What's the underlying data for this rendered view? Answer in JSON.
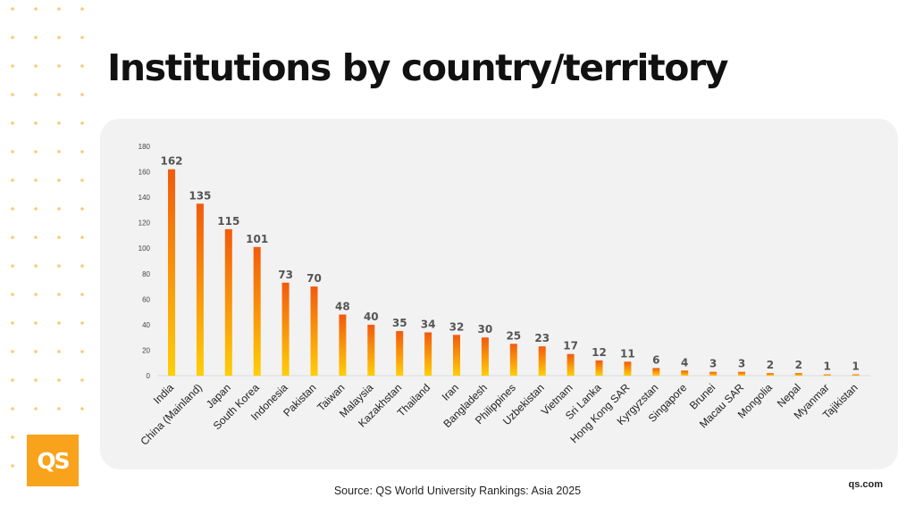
{
  "title": "Institutions by country/territory",
  "source": "Source: QS World University Rankings: Asia 2025",
  "brand": {
    "logo_text": "QS",
    "site": "qs.com",
    "logo_color": "#f9a21b",
    "dot_color": "#fbc878"
  },
  "chart_data": {
    "type": "bar",
    "categories": [
      "India",
      "China (Mainland)",
      "Japan",
      "South Korea",
      "Indonesia",
      "Pakistan",
      "Taiwan",
      "Malaysia",
      "Kazakhstan",
      "Thailand",
      "Iran",
      "Bangladesh",
      "Philippines",
      "Uzbekistan",
      "Vietnam",
      "Sri Lanka",
      "Hong Kong SAR",
      "Kyrgyzstan",
      "Singapore",
      "Brunei",
      "Macau SAR",
      "Mongolia",
      "Nepal",
      "Myanmar",
      "Tajikistan"
    ],
    "values": [
      162,
      135,
      115,
      101,
      73,
      70,
      48,
      40,
      35,
      34,
      32,
      30,
      25,
      23,
      17,
      12,
      11,
      6,
      4,
      3,
      3,
      2,
      2,
      1,
      1
    ],
    "yticks": [
      0,
      20,
      40,
      60,
      80,
      100,
      120,
      140,
      160,
      180
    ],
    "ylim": [
      0,
      180
    ],
    "xlabel": "",
    "ylabel": "",
    "bar_gradient": {
      "top": "#f25a0c",
      "bottom": "#ffce08"
    },
    "grid": false,
    "data_labels": true
  }
}
